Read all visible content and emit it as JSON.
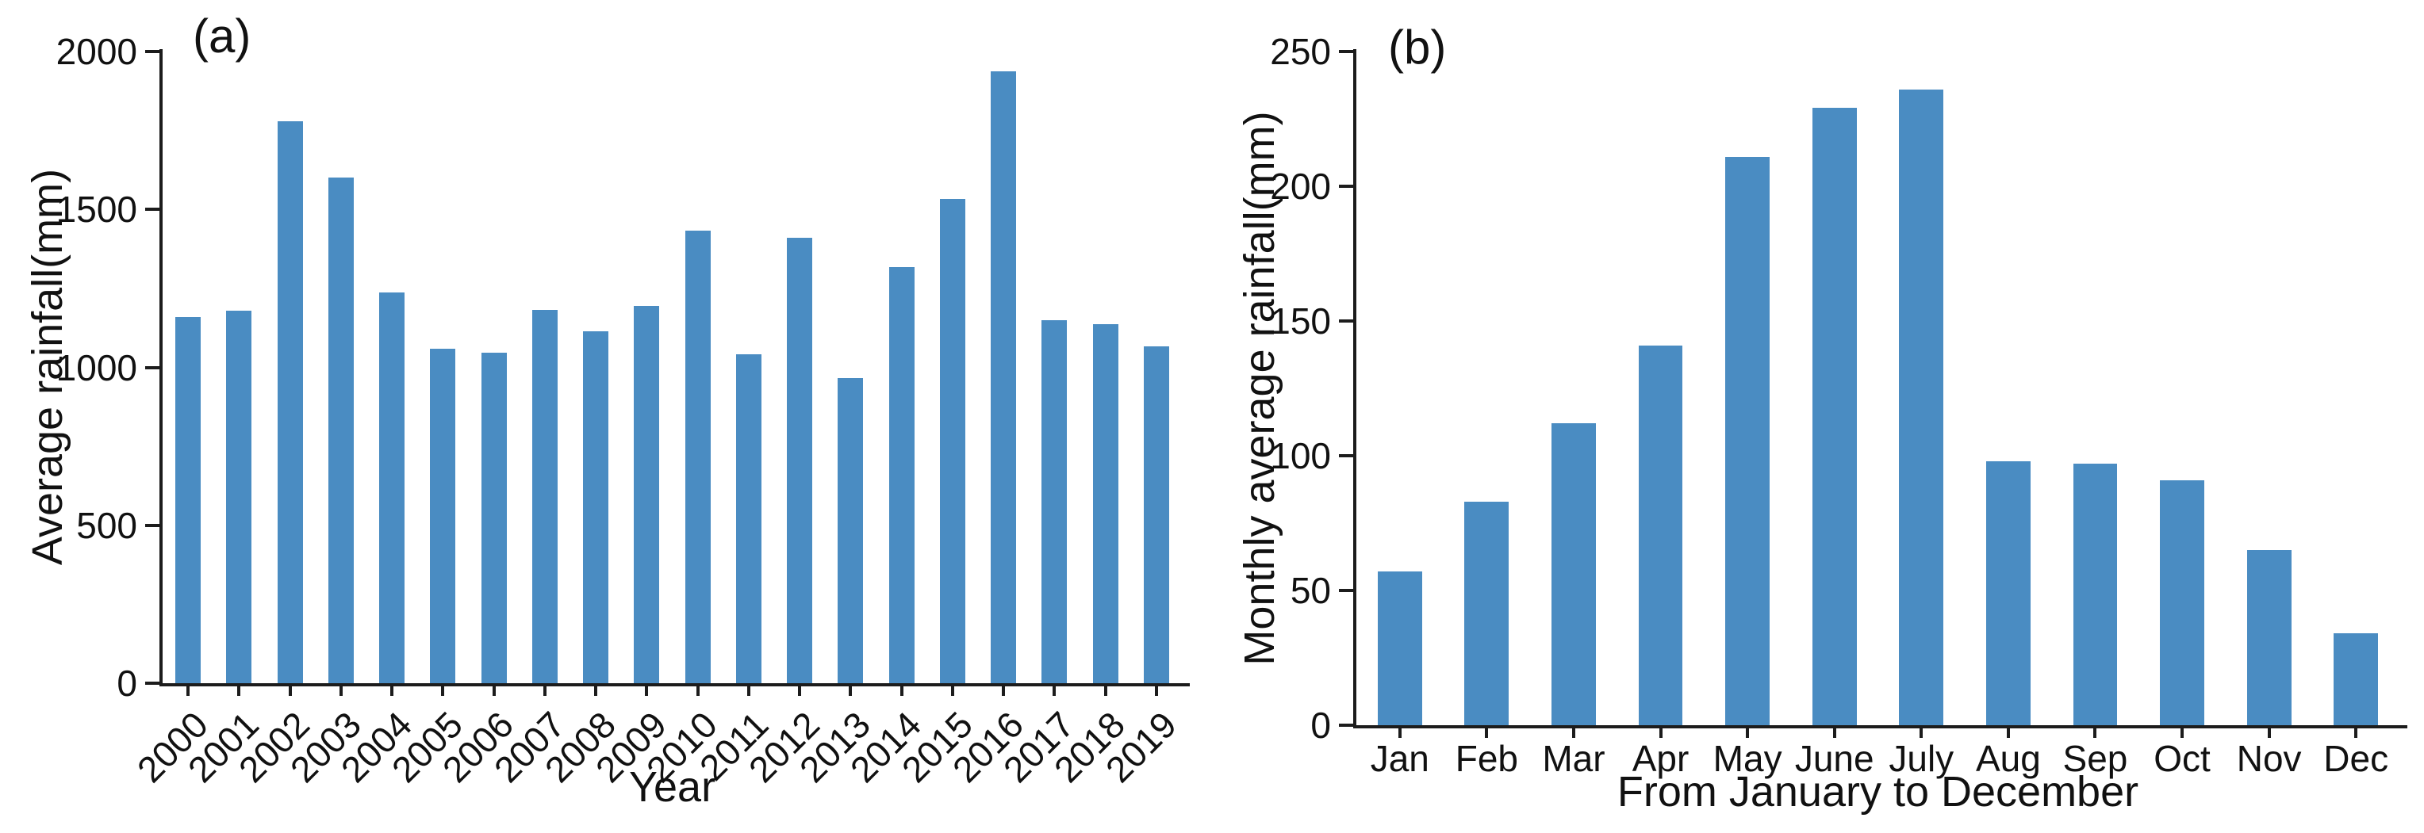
{
  "figure": {
    "background": "#ffffff",
    "bar_color": "#4a8cc2",
    "axis_color": "#1c1c1c",
    "text_color": "#111111"
  },
  "chart_data": [
    {
      "id": "a",
      "type": "bar",
      "panel_label": "(a)",
      "xlabel": "Year",
      "ylabel": "Average rainfall(mm)",
      "ylim": [
        0,
        2000
      ],
      "yticks": [
        0,
        500,
        1000,
        1500,
        2000
      ],
      "grid": false,
      "legend": "none",
      "x_tick_rotation": -45,
      "categories": [
        "2000",
        "2001",
        "2002",
        "2003",
        "2004",
        "2005",
        "2006",
        "2007",
        "2008",
        "2009",
        "2010",
        "2011",
        "2012",
        "2013",
        "2014",
        "2015",
        "2016",
        "2017",
        "2018",
        "2019"
      ],
      "values": [
        1160,
        1180,
        1780,
        1600,
        1238,
        1058,
        1046,
        1182,
        1114,
        1195,
        1432,
        1042,
        1410,
        966,
        1318,
        1533,
        1937,
        1149,
        1136,
        1067
      ]
    },
    {
      "id": "b",
      "type": "bar",
      "panel_label": "(b)",
      "xlabel": "From January to December",
      "ylabel": "Monthly average rainfall(mm)",
      "ylim": [
        0,
        250
      ],
      "yticks": [
        0,
        50,
        100,
        150,
        200,
        250
      ],
      "grid": false,
      "legend": "none",
      "x_tick_rotation": 0,
      "categories": [
        "Jan",
        "Feb",
        "Mar",
        "Apr",
        "May",
        "June",
        "July",
        "Aug",
        "Sep",
        "Oct",
        "Nov",
        "Dec"
      ],
      "values": [
        57,
        83,
        112,
        141,
        211,
        229,
        236,
        98,
        97,
        91,
        65,
        34
      ]
    }
  ]
}
